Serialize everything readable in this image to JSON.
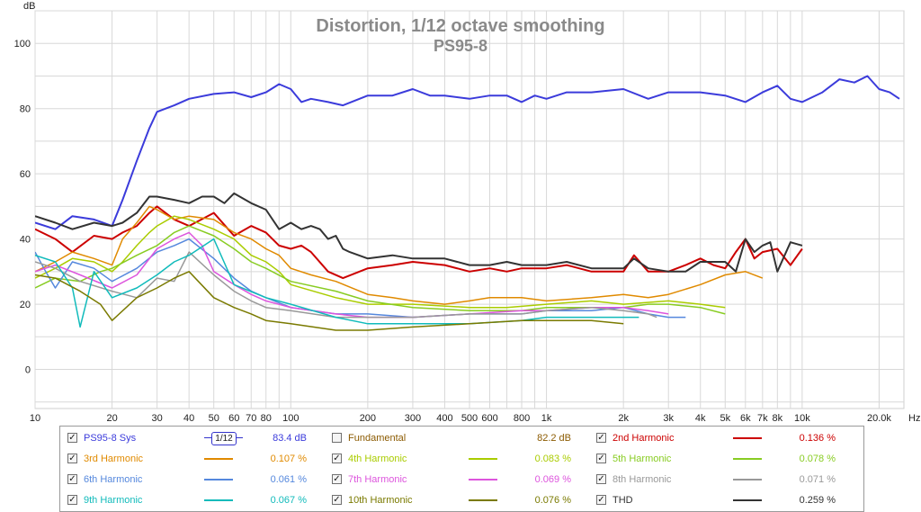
{
  "chart_data": {
    "type": "line",
    "title": "Distortion, 1/12 octave smoothing",
    "subtitle": "PS95-8",
    "ylabel": "dB",
    "xunit": "Hz",
    "xscale": "log",
    "xlim": [
      10,
      25000
    ],
    "ylim": [
      -12,
      110
    ],
    "grid": true,
    "yticks": [
      0,
      20,
      40,
      60,
      80,
      100
    ],
    "xticks": [
      {
        "v": 10,
        "label": "10"
      },
      {
        "v": 20,
        "label": "20"
      },
      {
        "v": 30,
        "label": "30"
      },
      {
        "v": 40,
        "label": "40"
      },
      {
        "v": 50,
        "label": "50"
      },
      {
        "v": 60,
        "label": "60"
      },
      {
        "v": 70,
        "label": "70"
      },
      {
        "v": 80,
        "label": "80"
      },
      {
        "v": 100,
        "label": "100"
      },
      {
        "v": 200,
        "label": "200"
      },
      {
        "v": 300,
        "label": "300"
      },
      {
        "v": 400,
        "label": "400"
      },
      {
        "v": 500,
        "label": "500"
      },
      {
        "v": 600,
        "label": "600"
      },
      {
        "v": 800,
        "label": "800"
      },
      {
        "v": 1000,
        "label": "1k"
      },
      {
        "v": 2000,
        "label": "2k"
      },
      {
        "v": 3000,
        "label": "3k"
      },
      {
        "v": 4000,
        "label": "4k"
      },
      {
        "v": 5000,
        "label": "5k"
      },
      {
        "v": 6000,
        "label": "6k"
      },
      {
        "v": 7000,
        "label": "7k"
      },
      {
        "v": 8000,
        "label": "8k"
      },
      {
        "v": 10000,
        "label": "10k"
      },
      {
        "v": 20000,
        "label": "20.0k"
      }
    ],
    "series": [
      {
        "name": "PS95-8 Sys",
        "color": "#3b3bdb",
        "x": [
          10,
          12,
          14,
          17,
          20,
          22,
          25,
          28,
          30,
          35,
          40,
          50,
          60,
          70,
          80,
          90,
          100,
          110,
          120,
          140,
          160,
          200,
          250,
          300,
          350,
          400,
          500,
          600,
          700,
          800,
          900,
          1000,
          1200,
          1500,
          2000,
          2500,
          3000,
          4000,
          5000,
          6000,
          7000,
          8000,
          9000,
          10000,
          12000,
          14000,
          16000,
          18000,
          20000,
          22000,
          24000
        ],
        "y": [
          45,
          43,
          47,
          46,
          44,
          52,
          64,
          74,
          79,
          81,
          83,
          84.5,
          85,
          83.5,
          85,
          87.5,
          86,
          82,
          83,
          82,
          81,
          84,
          84,
          86,
          84,
          84,
          83,
          84,
          84,
          82,
          84,
          83,
          85,
          85,
          86,
          83,
          85,
          85,
          84,
          82,
          85,
          87,
          83,
          82,
          85,
          89,
          88,
          90,
          86,
          85,
          83
        ]
      },
      {
        "name": "2nd Harmonic",
        "color": "#cc0000",
        "x": [
          10,
          12,
          14,
          17,
          20,
          22,
          25,
          28,
          30,
          35,
          40,
          50,
          60,
          70,
          80,
          90,
          100,
          110,
          120,
          140,
          160,
          200,
          250,
          300,
          400,
          500,
          600,
          700,
          800,
          1000,
          1200,
          1500,
          2000,
          2200,
          2500,
          3000,
          3500,
          4000,
          4500,
          5000,
          5500,
          6000,
          6500,
          7000,
          8000,
          9000,
          10000
        ],
        "y": [
          43,
          40,
          36,
          41,
          40,
          42,
          44,
          48,
          50,
          46,
          44,
          48,
          41,
          44,
          42,
          38,
          37,
          38,
          36,
          30,
          28,
          31,
          32,
          33,
          32,
          30,
          31,
          30,
          31,
          31,
          32,
          30,
          30,
          35,
          30,
          30,
          32,
          34,
          32,
          31,
          36,
          40,
          34,
          36,
          37,
          32,
          37
        ]
      },
      {
        "name": "3rd Harmonic",
        "color": "#e08a00",
        "x": [
          10,
          12,
          14,
          17,
          20,
          22,
          25,
          28,
          30,
          35,
          40,
          50,
          60,
          70,
          80,
          90,
          100,
          120,
          150,
          200,
          250,
          300,
          400,
          500,
          600,
          800,
          1000,
          1500,
          2000,
          2500,
          3000,
          4000,
          5000,
          6000,
          7000
        ],
        "y": [
          30,
          33,
          36,
          34,
          32,
          40,
          45,
          50,
          49,
          46,
          47,
          46,
          42,
          40,
          37,
          35,
          31,
          29,
          27,
          23,
          22,
          21,
          20,
          21,
          22,
          22,
          21,
          22,
          23,
          22,
          23,
          26,
          29,
          30,
          28
        ]
      },
      {
        "name": "4th Harmonic",
        "color": "#aacc00",
        "x": [
          10,
          12,
          14,
          17,
          20,
          22,
          25,
          28,
          30,
          35,
          40,
          50,
          60,
          70,
          80,
          90,
          100,
          150,
          200,
          300,
          500,
          700,
          1000,
          1500,
          2000,
          3000,
          4000,
          5000
        ],
        "y": [
          28,
          31,
          34,
          33,
          30,
          33,
          38,
          42,
          44,
          47,
          46,
          43,
          40,
          35,
          33,
          30,
          26,
          22,
          20,
          20,
          19,
          19,
          20,
          21,
          20,
          21,
          20,
          19
        ]
      },
      {
        "name": "5th Harmonic",
        "color": "#88cc22",
        "x": [
          10,
          12,
          15,
          18,
          20,
          25,
          30,
          35,
          40,
          50,
          60,
          70,
          80,
          100,
          150,
          200,
          300,
          500,
          800,
          1000,
          1500,
          2000,
          2500,
          3000,
          4000,
          5000
        ],
        "y": [
          25,
          28,
          27,
          30,
          31,
          35,
          38,
          42,
          44,
          41,
          37,
          33,
          31,
          27,
          24,
          21,
          19,
          18,
          18,
          19,
          19,
          19,
          20,
          20,
          19,
          17
        ]
      },
      {
        "name": "6th Harmonic",
        "color": "#5588dd",
        "x": [
          10,
          11,
          12,
          14,
          17,
          20,
          25,
          30,
          35,
          40,
          50,
          60,
          70,
          80,
          100,
          150,
          200,
          300,
          500,
          800,
          1000,
          1500,
          2000,
          2500,
          3000,
          3500
        ],
        "y": [
          36,
          30,
          25,
          33,
          31,
          27,
          31,
          36,
          38,
          40,
          34,
          28,
          24,
          22,
          19,
          17,
          17,
          16,
          17,
          17,
          18,
          18,
          19,
          17,
          16,
          16
        ]
      },
      {
        "name": "7th Harmonic",
        "color": "#dd55dd",
        "x": [
          10,
          12,
          15,
          20,
          25,
          30,
          35,
          40,
          45,
          50,
          60,
          70,
          80,
          100,
          150,
          200,
          300,
          500,
          800,
          1000,
          1500,
          2000,
          2500,
          3000
        ],
        "y": [
          30,
          32,
          29,
          25,
          29,
          37,
          40,
          42,
          38,
          30,
          26,
          23,
          21,
          19,
          17,
          16,
          16,
          17,
          18,
          18,
          19,
          19,
          18,
          17
        ]
      },
      {
        "name": "8th Harmonic",
        "color": "#999999",
        "x": [
          10,
          12,
          15,
          20,
          25,
          30,
          35,
          40,
          50,
          60,
          70,
          80,
          100,
          150,
          200,
          300,
          500,
          800,
          1000,
          1500,
          2000,
          2500,
          2700
        ],
        "y": [
          33,
          31,
          27,
          24,
          22,
          28,
          27,
          36,
          29,
          24,
          21,
          19,
          18,
          16,
          16,
          16,
          17,
          17,
          18,
          19,
          18,
          17,
          16
        ]
      },
      {
        "name": "9th Harmonic",
        "color": "#11bbbb",
        "x": [
          10,
          12,
          14,
          15,
          17,
          20,
          25,
          30,
          35,
          40,
          50,
          60,
          80,
          100,
          150,
          200,
          300,
          500,
          800,
          1000,
          1500,
          2000,
          2300
        ],
        "y": [
          35,
          33,
          25,
          13,
          30,
          22,
          25,
          29,
          33,
          35,
          40,
          26,
          22,
          20,
          16,
          14,
          14,
          14,
          15,
          16,
          16,
          16,
          16
        ]
      },
      {
        "name": "10th Harmonic",
        "color": "#7a7a00",
        "x": [
          10,
          12,
          15,
          18,
          20,
          25,
          30,
          35,
          40,
          50,
          60,
          70,
          80,
          100,
          150,
          200,
          300,
          500,
          800,
          1000,
          1500,
          2000
        ],
        "y": [
          29,
          28,
          24,
          20,
          15,
          22,
          25,
          28,
          30,
          22,
          19,
          17,
          15,
          14,
          12,
          12,
          13,
          14,
          15,
          15,
          15,
          14
        ]
      },
      {
        "name": "THD",
        "color": "#333333",
        "x": [
          10,
          12,
          14,
          17,
          20,
          22,
          25,
          28,
          30,
          35,
          40,
          45,
          50,
          55,
          60,
          70,
          80,
          90,
          100,
          110,
          120,
          130,
          140,
          150,
          160,
          170,
          200,
          250,
          300,
          400,
          500,
          600,
          700,
          800,
          1000,
          1200,
          1500,
          2000,
          2200,
          2500,
          3000,
          3500,
          4000,
          4500,
          5000,
          5500,
          6000,
          6500,
          7000,
          7500,
          8000,
          9000,
          10000
        ],
        "y": [
          47,
          45,
          43,
          45,
          44,
          45,
          48,
          53,
          53,
          52,
          51,
          53,
          53,
          51,
          54,
          51,
          49,
          43,
          45,
          43,
          44,
          43,
          40,
          41,
          37,
          36,
          34,
          35,
          34,
          34,
          32,
          32,
          33,
          32,
          32,
          33,
          31,
          31,
          34,
          31,
          30,
          30,
          33,
          33,
          33,
          30,
          40,
          36,
          38,
          39,
          30,
          39,
          38
        ]
      }
    ]
  },
  "legend": {
    "rows": [
      [
        {
          "name": "PS95-8 Sys",
          "value": "83.4 dB",
          "color": "#3b3bdb",
          "checked": true,
          "smoothing": "1/12"
        },
        {
          "name": "Fundamental",
          "value": "82.2 dB",
          "color": "#8b5a00",
          "checked": false
        },
        {
          "name": "2nd Harmonic",
          "value": "0.136 %",
          "color": "#cc0000",
          "checked": true
        }
      ],
      [
        {
          "name": "3rd Harmonic",
          "value": "0.107 %",
          "color": "#e08a00",
          "checked": true
        },
        {
          "name": "4th Harmonic",
          "value": "0.083 %",
          "color": "#aacc00",
          "checked": true
        },
        {
          "name": "5th Harmonic",
          "value": "0.078 %",
          "color": "#88cc22",
          "checked": true
        }
      ],
      [
        {
          "name": "6th Harmonic",
          "value": "0.061 %",
          "color": "#5588dd",
          "checked": true
        },
        {
          "name": "7th Harmonic",
          "value": "0.069 %",
          "color": "#dd55dd",
          "checked": true
        },
        {
          "name": "8th Harmonic",
          "value": "0.071 %",
          "color": "#999999",
          "checked": true
        }
      ],
      [
        {
          "name": "9th Harmonic",
          "value": "0.067 %",
          "color": "#11bbbb",
          "checked": true
        },
        {
          "name": "10th Harmonic",
          "value": "0.076 %",
          "color": "#7a7a00",
          "checked": true
        },
        {
          "name": "THD",
          "value": "0.259 %",
          "color": "#333333",
          "checked": true
        }
      ]
    ]
  }
}
